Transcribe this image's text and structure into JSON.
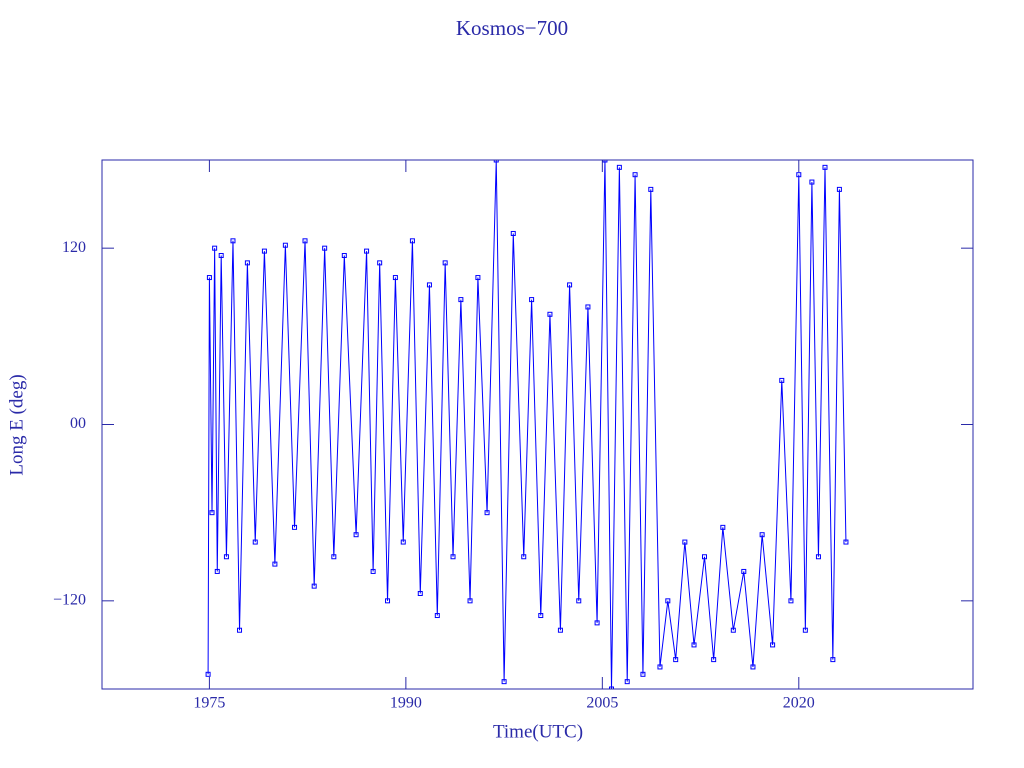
{
  "chart_data": {
    "type": "line",
    "title": "Kosmos−700",
    "xlabel": "Time(UTC)",
    "ylabel": "Long E (deg)",
    "color": "#0000ff",
    "xlim": [
      1966.8,
      2033.3
    ],
    "ylim": [
      -180,
      180
    ],
    "xticks": [
      1975,
      1990,
      2005,
      2020
    ],
    "yticks": [
      120,
      {
        "value": 0,
        "label": "00"
      },
      {
        "value": -120,
        "label": "−120"
      }
    ],
    "x": [
      1974.9,
      1975.0,
      1975.2,
      1975.4,
      1975.6,
      1975.9,
      1976.3,
      1976.8,
      1977.3,
      1977.9,
      1978.5,
      1979.2,
      1980.0,
      1980.8,
      1981.5,
      1982.3,
      1983.0,
      1983.8,
      1984.5,
      1985.3,
      1986.2,
      1987.0,
      1987.5,
      1988.0,
      1988.6,
      1989.2,
      1989.8,
      1990.5,
      1991.1,
      1991.8,
      1992.4,
      1993.0,
      1993.6,
      1994.2,
      1994.9,
      1995.5,
      1996.2,
      1996.9,
      1997.5,
      1998.2,
      1999.0,
      1999.6,
      2000.3,
      2001.0,
      2001.8,
      2002.5,
      2003.2,
      2003.9,
      2004.6,
      2005.2,
      2005.7,
      2006.3,
      2006.9,
      2007.5,
      2008.1,
      2008.7,
      2009.4,
      2010.0,
      2010.6,
      2011.3,
      2012.0,
      2012.8,
      2013.5,
      2014.2,
      2015.0,
      2015.8,
      2016.5,
      2017.2,
      2018.0,
      2018.7,
      2019.4,
      2020.0,
      2020.5,
      2021.0,
      2021.5,
      2022.0,
      2022.6,
      2023.1,
      2023.6
    ],
    "values": [
      -170,
      100,
      -60,
      120,
      -100,
      115,
      -90,
      125,
      -140,
      110,
      -80,
      118,
      -95,
      122,
      -70,
      125,
      -110,
      120,
      -90,
      115,
      -75,
      118,
      -100,
      110,
      -120,
      100,
      -80,
      125,
      -115,
      95,
      -130,
      110,
      -90,
      85,
      -120,
      100,
      -60,
      180,
      -175,
      130,
      -90,
      85,
      -130,
      75,
      -140,
      95,
      -120,
      80,
      -135,
      180,
      -180,
      175,
      -175,
      170,
      -170,
      160,
      -165,
      -120,
      -160,
      -80,
      -150,
      -90,
      -160,
      -70,
      -140,
      -100,
      -165,
      -75,
      -150,
      30,
      -120,
      170,
      -140,
      165,
      -90,
      175,
      -160,
      160,
      -80
    ]
  }
}
